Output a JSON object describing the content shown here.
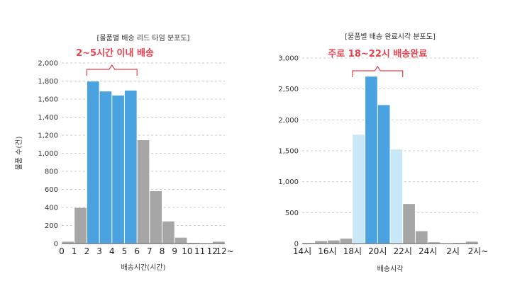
{
  "chart_data": [
    {
      "type": "bar",
      "title": "[물품별 배송 리드 타임 분포도]",
      "xlabel": "배송시간(시간)",
      "ylabel": "물품 수(건)",
      "ylim": [
        0,
        2000
      ],
      "yticks": [
        "0",
        "200",
        "400",
        "600",
        "800",
        "1,000",
        "1,200",
        "1,400",
        "1,600",
        "1,800",
        "2,000"
      ],
      "grid": "horizontal dashed",
      "xticks": [
        "0",
        "1",
        "2",
        "3",
        "4",
        "5",
        "6",
        "7",
        "8",
        "9",
        "10",
        "11",
        "12",
        "12~"
      ],
      "values": [
        20,
        395,
        1795,
        1685,
        1640,
        1695,
        1145,
        580,
        245,
        65,
        8,
        5,
        20
      ],
      "colors": [
        "#a6a6a6",
        "#a6a6a6",
        "#4aa3e0",
        "#4aa3e0",
        "#4aa3e0",
        "#4aa3e0",
        "#a6a6a6",
        "#a6a6a6",
        "#a6a6a6",
        "#a6a6a6",
        "#a6a6a6",
        "#a6a6a6",
        "#a6a6a6"
      ],
      "annotation": {
        "text": "2~5시간 이내 배송",
        "from_bar": 2,
        "to_bar": 5,
        "color": "#e8414e"
      }
    },
    {
      "type": "bar",
      "title": "[물품별 배송 완료시각 분포도]",
      "xlabel": "배송시각",
      "ylabel": "물품 수(건)",
      "ylim": [
        0,
        3000
      ],
      "yticks": [
        "0",
        "500",
        "1,000",
        "1,500",
        "2,000",
        "2,500",
        "3,000"
      ],
      "grid": "horizontal dashed",
      "xticks": [
        "14시",
        "16시",
        "18시",
        "20시",
        "22시",
        "24시",
        "2시",
        "2시~"
      ],
      "values": [
        10,
        40,
        50,
        80,
        1760,
        2700,
        2240,
        1520,
        640,
        200,
        20,
        5,
        10,
        30
      ],
      "colors": [
        "#a6a6a6",
        "#a6a6a6",
        "#a6a6a6",
        "#a6a6a6",
        "#c8e8f8",
        "#4aa3e0",
        "#4aa3e0",
        "#c8e8f8",
        "#a6a6a6",
        "#a6a6a6",
        "#a6a6a6",
        "#a6a6a6",
        "#a6a6a6",
        "#a6a6a6"
      ],
      "annotation": {
        "text": "주로 18~22시 배송완료",
        "from_bar": 4,
        "to_bar": 7,
        "color": "#e8414e"
      }
    }
  ]
}
